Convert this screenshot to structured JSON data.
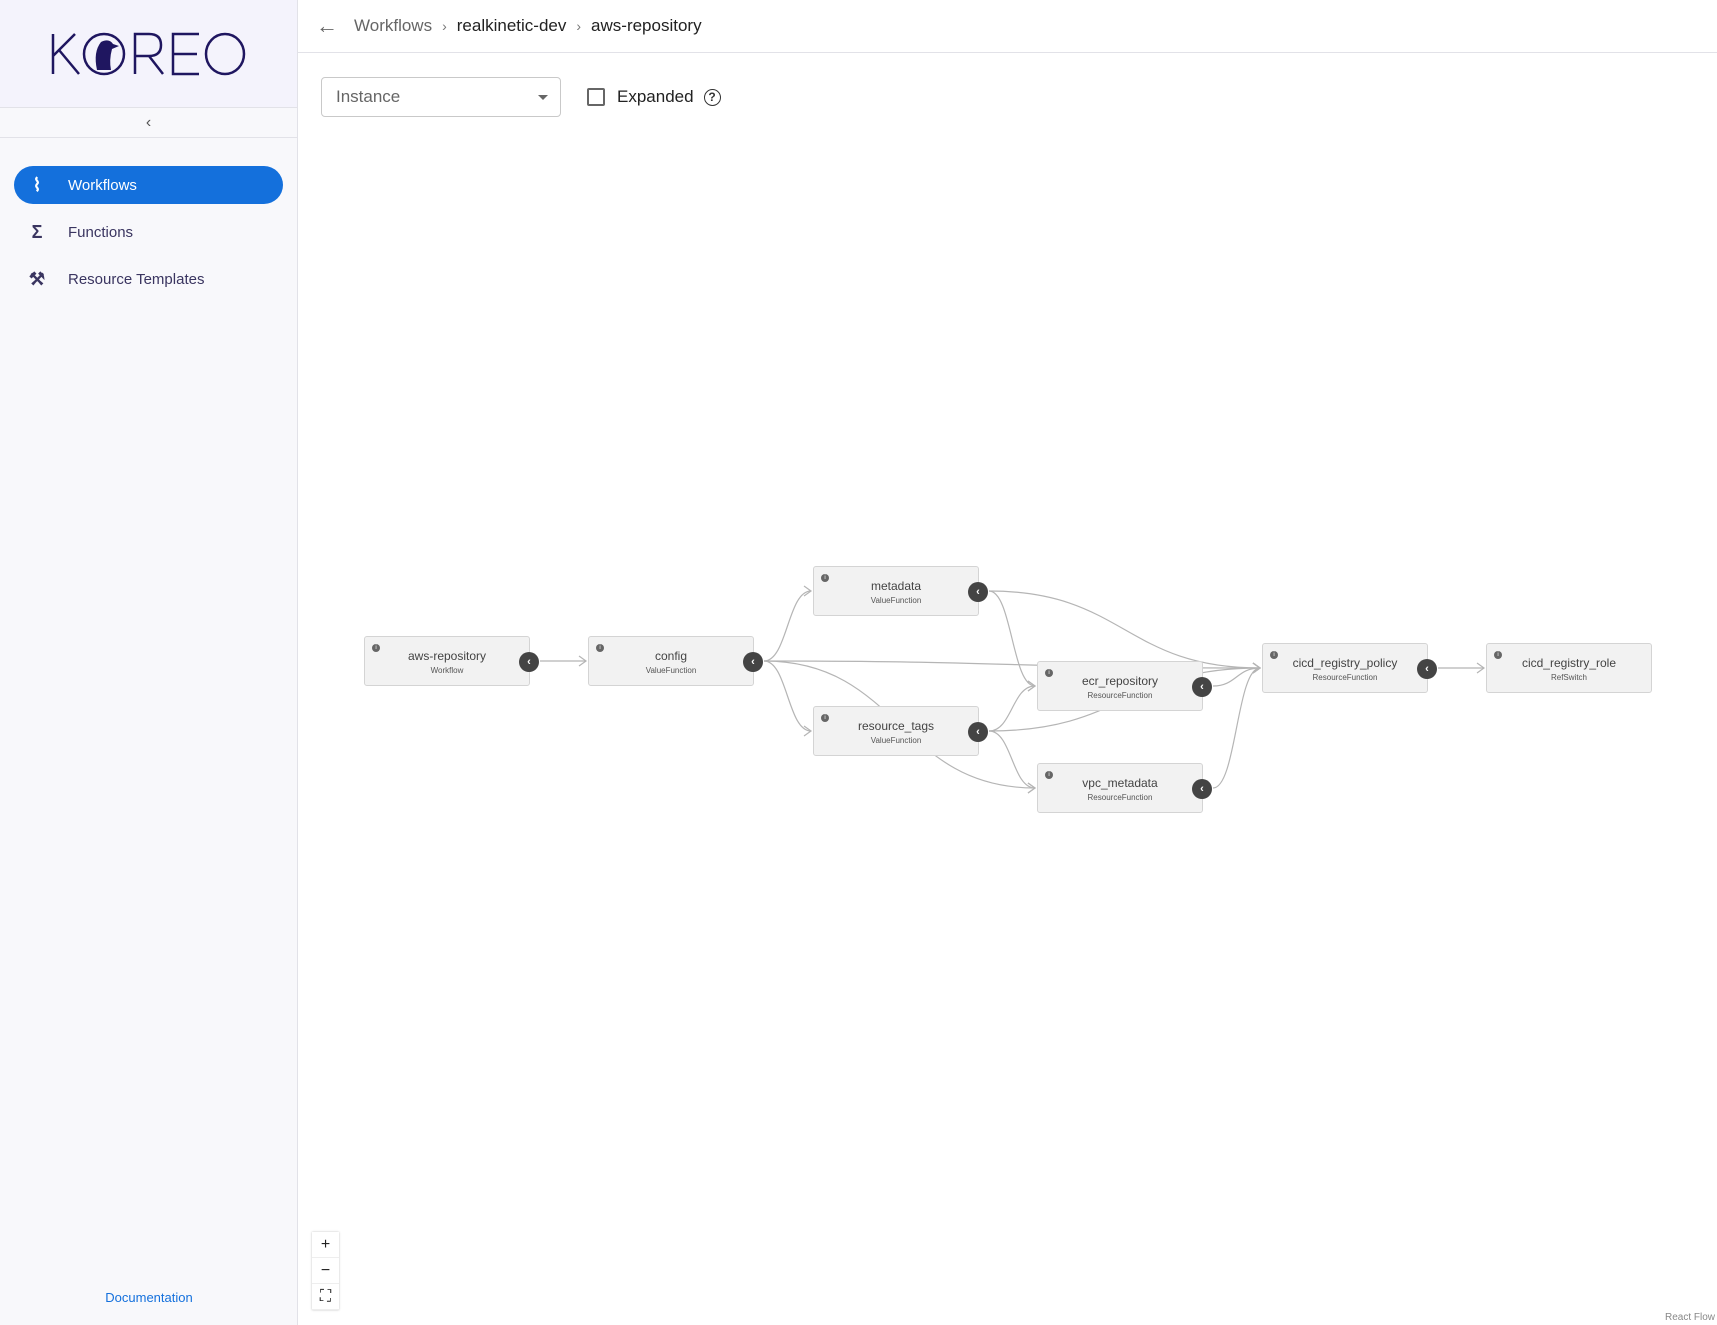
{
  "app": {
    "logo_text": "KOREO",
    "brand_color": "#1f1660",
    "accent": "#1470dc"
  },
  "sidebar": {
    "collapse_icon": "chevron-left-icon",
    "items": [
      {
        "label": "Workflows",
        "icon": "workflow-icon",
        "active": true
      },
      {
        "label": "Functions",
        "icon": "sigma-icon",
        "active": false
      },
      {
        "label": "Resource Templates",
        "icon": "tools-icon",
        "active": false
      }
    ],
    "documentation": "Documentation"
  },
  "header": {
    "breadcrumbs": [
      "Workflows",
      "realkinetic-dev",
      "aws-repository"
    ]
  },
  "toolbar": {
    "select_placeholder": "Instance",
    "expanded_label": "Expanded",
    "expanded_checked": false
  },
  "graph": {
    "nodes": [
      {
        "id": "aws-repository",
        "label": "aws-repository",
        "type": "Workflow"
      },
      {
        "id": "config",
        "label": "config",
        "type": "ValueFunction"
      },
      {
        "id": "metadata",
        "label": "metadata",
        "type": "ValueFunction"
      },
      {
        "id": "resource_tags",
        "label": "resource_tags",
        "type": "ValueFunction"
      },
      {
        "id": "ecr_repository",
        "label": "ecr_repository",
        "type": "ResourceFunction"
      },
      {
        "id": "vpc_metadata",
        "label": "vpc_metadata",
        "type": "ResourceFunction"
      },
      {
        "id": "cicd_registry_policy",
        "label": "cicd_registry_policy",
        "type": "ResourceFunction"
      },
      {
        "id": "cicd_registry_role",
        "label": "cicd_registry_role",
        "type": "RefSwitch"
      }
    ],
    "edges": [
      [
        "aws-repository",
        "config"
      ],
      [
        "config",
        "metadata"
      ],
      [
        "config",
        "resource_tags"
      ],
      [
        "config",
        "cicd_registry_policy"
      ],
      [
        "config",
        "vpc_metadata"
      ],
      [
        "metadata",
        "ecr_repository"
      ],
      [
        "metadata",
        "cicd_registry_policy"
      ],
      [
        "resource_tags",
        "ecr_repository"
      ],
      [
        "resource_tags",
        "cicd_registry_policy"
      ],
      [
        "resource_tags",
        "vpc_metadata"
      ],
      [
        "ecr_repository",
        "cicd_registry_policy"
      ],
      [
        "vpc_metadata",
        "cicd_registry_policy"
      ],
      [
        "cicd_registry_policy",
        "cicd_registry_role"
      ]
    ]
  },
  "controls": {
    "zoom_in": "+",
    "zoom_out": "−",
    "fit_view": "⛶"
  },
  "attribution": "React Flow"
}
